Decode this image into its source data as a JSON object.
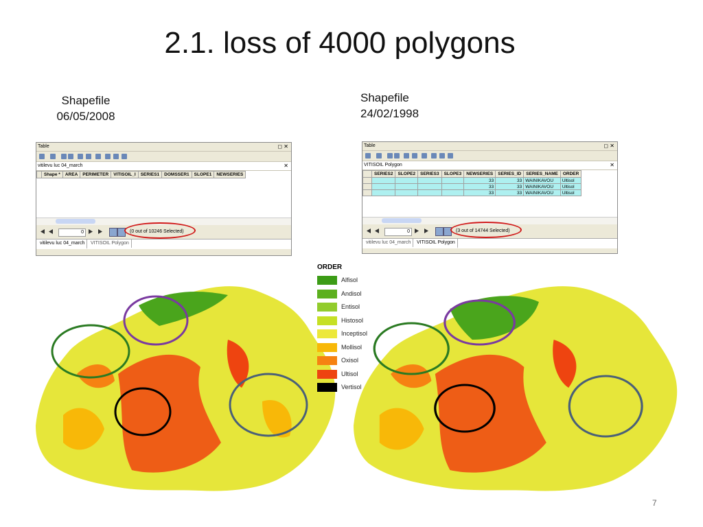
{
  "title": "2.1. loss of 4000 polygons",
  "left": {
    "caption": [
      "Shapefile",
      "06/05/2008"
    ],
    "window": {
      "title": "Table",
      "layer": "vitilevu luc 04_march",
      "columns": [
        "Shape *",
        "AREA",
        "PERIMETER",
        "VITISOIL_I",
        "SERIES1",
        "DOMSSER1",
        "SLOPE1",
        "NEWSERIES"
      ],
      "record": "0",
      "status": "(0 out of 10246 Selected)",
      "tabs": [
        "vitilevu luc 04_march",
        "VITISOIL Polygon"
      ]
    }
  },
  "right": {
    "caption": [
      "Shapefile",
      "24/02/1998"
    ],
    "window": {
      "title": "Table",
      "layer": "VITISOIL Polygon",
      "columns": [
        "SERIES2",
        "SLOPE2",
        "SERIES3",
        "SLOPE3",
        "NEWSERIES",
        "SERIES_ID",
        "SERIES_NAME",
        "ORDER"
      ],
      "rows": [
        {
          "newseries": "33",
          "series_id": "33",
          "series_name": "WAINIKAVOU",
          "order": "Ultisol"
        },
        {
          "newseries": "33",
          "series_id": "33",
          "series_name": "WAINIKAVOU",
          "order": "Ultisol"
        },
        {
          "newseries": "33",
          "series_id": "33",
          "series_name": "WAINIKAVOU",
          "order": "Ultisol"
        }
      ],
      "record": "0",
      "status": "(3 out of 14744 Selected)",
      "tabs": [
        "vitilevu luc 04_march",
        "VITISOIL Polygon"
      ]
    }
  },
  "legend": {
    "title": "ORDER",
    "items": [
      {
        "label": "Alfisol",
        "color": "#3c9c16"
      },
      {
        "label": "Andisol",
        "color": "#5cb01e"
      },
      {
        "label": "Entisol",
        "color": "#92cc2c"
      },
      {
        "label": "Histosol",
        "color": "#c6e024"
      },
      {
        "label": "Inceptisol",
        "color": "#ece83a"
      },
      {
        "label": "Mollisol",
        "color": "#f8b808"
      },
      {
        "label": "Oxisol",
        "color": "#f68212"
      },
      {
        "label": "Ultisol",
        "color": "#ee4410"
      },
      {
        "label": "Vertisol",
        "color": "#000000"
      }
    ]
  },
  "page_number": "7"
}
